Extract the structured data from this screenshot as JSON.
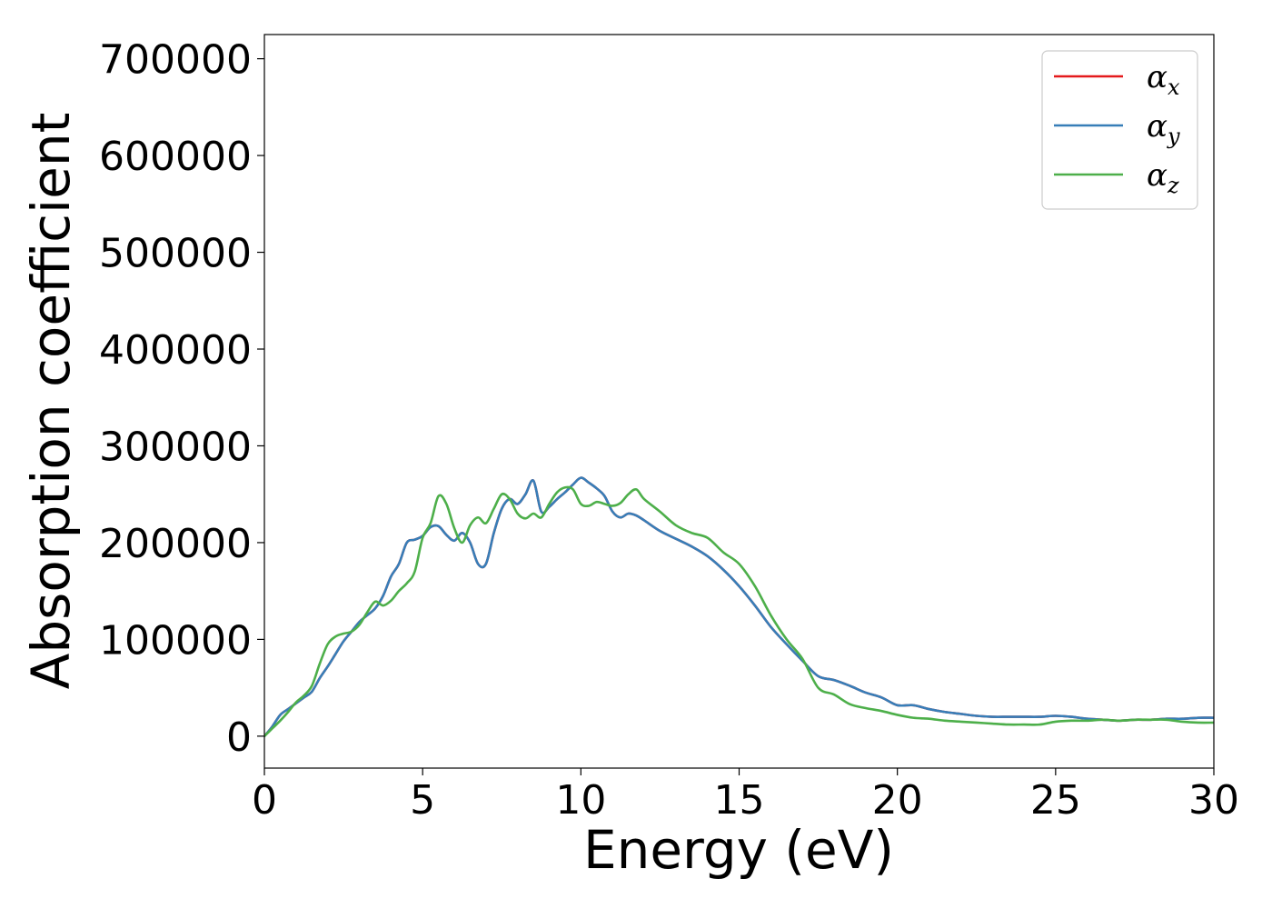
{
  "chart_data": {
    "type": "line",
    "title": "",
    "xlabel": "Energy (eV)",
    "ylabel": "Absorption coefficient",
    "xlim": [
      0,
      30
    ],
    "ylim": [
      -33000,
      725000
    ],
    "xticks": [
      0,
      5,
      10,
      15,
      20,
      25,
      30
    ],
    "xtick_labels": [
      "0",
      "5",
      "10",
      "15",
      "20",
      "25",
      "30"
    ],
    "yticks": [
      0,
      100000,
      200000,
      300000,
      400000,
      500000,
      600000,
      700000
    ],
    "ytick_labels": [
      "0",
      "100000",
      "200000",
      "300000",
      "400000",
      "500000",
      "600000",
      "700000"
    ],
    "grid": false,
    "legend_position": "top-right",
    "series": [
      {
        "name": "αx",
        "symbol": "α",
        "subscript": "x",
        "color": "#e41a1c",
        "x": [
          0,
          0.25,
          0.5,
          0.75,
          1.0,
          1.25,
          1.5,
          1.75,
          2.0,
          2.25,
          2.5,
          2.75,
          3.0,
          3.25,
          3.5,
          3.75,
          4.0,
          4.25,
          4.5,
          4.75,
          5.0,
          5.25,
          5.5,
          5.75,
          6.0,
          6.25,
          6.5,
          6.75,
          7.0,
          7.25,
          7.5,
          7.75,
          8.0,
          8.25,
          8.5,
          8.75,
          9.0,
          9.25,
          9.5,
          9.75,
          10.0,
          10.25,
          10.5,
          10.75,
          11.0,
          11.25,
          11.5,
          11.75,
          12.0,
          12.5,
          13.0,
          13.5,
          14.0,
          14.5,
          15.0,
          15.5,
          16.0,
          16.5,
          17.0,
          17.5,
          18.0,
          18.5,
          19.0,
          19.5,
          20.0,
          20.5,
          21.0,
          21.5,
          22.0,
          22.5,
          23.0,
          23.5,
          24.0,
          24.5,
          25.0,
          25.5,
          26.0,
          26.5,
          27.0,
          27.5,
          28.0,
          28.5,
          29.0,
          29.5,
          30.0
        ],
        "values": [
          0,
          10000,
          22000,
          28000,
          34000,
          40000,
          46000,
          60000,
          72000,
          85000,
          98000,
          108000,
          118000,
          125000,
          132000,
          145000,
          165000,
          178000,
          200000,
          203000,
          207000,
          216000,
          217000,
          208000,
          202000,
          210000,
          200000,
          178000,
          178000,
          210000,
          235000,
          245000,
          240000,
          250000,
          264000,
          232000,
          237000,
          245000,
          252000,
          260000,
          267000,
          262000,
          256000,
          248000,
          232000,
          226000,
          230000,
          228000,
          223000,
          212000,
          204000,
          196000,
          186000,
          172000,
          155000,
          135000,
          113000,
          95000,
          78000,
          62000,
          58000,
          52000,
          45000,
          40000,
          32000,
          32000,
          28000,
          25000,
          23000,
          21000,
          20000,
          20000,
          20000,
          20000,
          21000,
          20000,
          18000,
          17000,
          16000,
          17000,
          17000,
          18000,
          18000,
          19000,
          19000
        ]
      },
      {
        "name": "αy",
        "symbol": "α",
        "subscript": "y",
        "color": "#377eb8",
        "x": [
          0,
          0.25,
          0.5,
          0.75,
          1.0,
          1.25,
          1.5,
          1.75,
          2.0,
          2.25,
          2.5,
          2.75,
          3.0,
          3.25,
          3.5,
          3.75,
          4.0,
          4.25,
          4.5,
          4.75,
          5.0,
          5.25,
          5.5,
          5.75,
          6.0,
          6.25,
          6.5,
          6.75,
          7.0,
          7.25,
          7.5,
          7.75,
          8.0,
          8.25,
          8.5,
          8.75,
          9.0,
          9.25,
          9.5,
          9.75,
          10.0,
          10.25,
          10.5,
          10.75,
          11.0,
          11.25,
          11.5,
          11.75,
          12.0,
          12.5,
          13.0,
          13.5,
          14.0,
          14.5,
          15.0,
          15.5,
          16.0,
          16.5,
          17.0,
          17.5,
          18.0,
          18.5,
          19.0,
          19.5,
          20.0,
          20.5,
          21.0,
          21.5,
          22.0,
          22.5,
          23.0,
          23.5,
          24.0,
          24.5,
          25.0,
          25.5,
          26.0,
          26.5,
          27.0,
          27.5,
          28.0,
          28.5,
          29.0,
          29.5,
          30.0
        ],
        "values": [
          0,
          10000,
          22000,
          28000,
          34000,
          40000,
          46000,
          60000,
          72000,
          85000,
          98000,
          108000,
          118000,
          125000,
          132000,
          145000,
          165000,
          178000,
          200000,
          203000,
          207000,
          216000,
          217000,
          208000,
          202000,
          210000,
          200000,
          178000,
          178000,
          210000,
          235000,
          245000,
          240000,
          250000,
          264000,
          232000,
          237000,
          245000,
          252000,
          260000,
          267000,
          262000,
          256000,
          248000,
          232000,
          226000,
          230000,
          228000,
          223000,
          212000,
          204000,
          196000,
          186000,
          172000,
          155000,
          135000,
          113000,
          95000,
          78000,
          62000,
          58000,
          52000,
          45000,
          40000,
          32000,
          32000,
          28000,
          25000,
          23000,
          21000,
          20000,
          20000,
          20000,
          20000,
          21000,
          20000,
          18000,
          17000,
          16000,
          17000,
          17000,
          18000,
          18000,
          19000,
          19000
        ]
      },
      {
        "name": "αz",
        "symbol": "α",
        "subscript": "z",
        "color": "#4daf4a",
        "x": [
          0,
          0.25,
          0.5,
          0.75,
          1.0,
          1.25,
          1.5,
          1.75,
          2.0,
          2.25,
          2.5,
          2.75,
          3.0,
          3.25,
          3.5,
          3.75,
          4.0,
          4.25,
          4.5,
          4.75,
          5.0,
          5.25,
          5.5,
          5.75,
          6.0,
          6.25,
          6.5,
          6.75,
          7.0,
          7.25,
          7.5,
          7.75,
          8.0,
          8.25,
          8.5,
          8.75,
          9.0,
          9.25,
          9.5,
          9.75,
          10.0,
          10.25,
          10.5,
          10.75,
          11.0,
          11.25,
          11.5,
          11.75,
          12.0,
          12.5,
          13.0,
          13.5,
          14.0,
          14.5,
          15.0,
          15.5,
          16.0,
          16.5,
          17.0,
          17.5,
          18.0,
          18.5,
          19.0,
          19.5,
          20.0,
          20.5,
          21.0,
          21.5,
          22.0,
          22.5,
          23.0,
          23.5,
          24.0,
          24.5,
          25.0,
          25.5,
          26.0,
          26.5,
          27.0,
          27.5,
          28.0,
          28.5,
          29.0,
          29.5,
          30.0
        ],
        "values": [
          0,
          8000,
          16000,
          25000,
          35000,
          42000,
          52000,
          75000,
          95000,
          103000,
          106000,
          108000,
          115000,
          128000,
          139000,
          135000,
          140000,
          150000,
          158000,
          170000,
          205000,
          220000,
          248000,
          240000,
          215000,
          200000,
          218000,
          226000,
          220000,
          235000,
          250000,
          245000,
          230000,
          225000,
          230000,
          226000,
          240000,
          252000,
          257000,
          255000,
          240000,
          238000,
          242000,
          240000,
          238000,
          241000,
          250000,
          255000,
          245000,
          232000,
          218000,
          210000,
          205000,
          190000,
          178000,
          155000,
          125000,
          100000,
          80000,
          50000,
          43000,
          33000,
          29000,
          26000,
          22000,
          19000,
          18000,
          16000,
          15000,
          14000,
          13000,
          12000,
          12000,
          12000,
          15000,
          16000,
          16000,
          17000,
          16000,
          17000,
          17000,
          17000,
          15000,
          14000,
          14000
        ]
      }
    ]
  }
}
